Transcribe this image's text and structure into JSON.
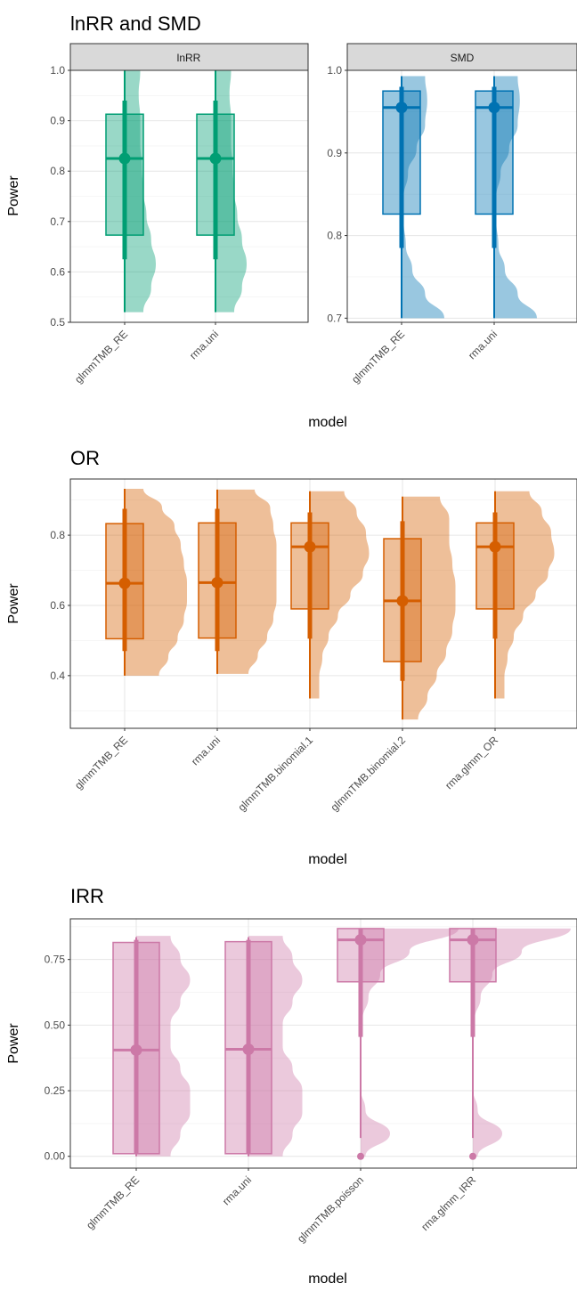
{
  "chart_data": [
    {
      "type": "raincloud",
      "title": "lnRR and SMD",
      "xlabel": "model",
      "ylabel": "Power",
      "color": "#009E73",
      "facets": [
        {
          "strip": "lnRR",
          "color": "#009E73",
          "ylim": [
            0.5,
            1.0
          ],
          "yticks": [
            "0.5",
            "0.6",
            "0.7",
            "0.8",
            "0.9",
            "1.0"
          ],
          "categories": [
            "glmmTMB_RE",
            "rma.uni"
          ],
          "series": [
            {
              "q1": 0.673,
              "median": 0.825,
              "q3": 0.913,
              "whisker_low": 0.52,
              "whisker_high": 1.0,
              "interval_low": 0.625,
              "interval_high": 0.94,
              "point": 0.825,
              "density_max": 1.0,
              "density_min": 0.52,
              "density_shape": [
                0.6,
                0.85,
                1.0,
                0.85,
                0.7,
                0.6,
                0.55,
                0.5,
                0.5,
                0.45,
                0.5
              ]
            },
            {
              "q1": 0.673,
              "median": 0.825,
              "q3": 0.913,
              "whisker_low": 0.52,
              "whisker_high": 1.0,
              "interval_low": 0.625,
              "interval_high": 0.94,
              "point": 0.825,
              "density_max": 1.0,
              "density_min": 0.52,
              "density_shape": [
                0.6,
                0.85,
                1.0,
                0.85,
                0.7,
                0.6,
                0.55,
                0.5,
                0.5,
                0.45,
                0.5
              ]
            }
          ]
        },
        {
          "strip": "SMD",
          "color": "#0072B2",
          "ylim": [
            0.695,
            1.0
          ],
          "yticks": [
            "0.7",
            "0.8",
            "0.9",
            "1.0"
          ],
          "categories": [
            "glmmTMB_RE",
            "rma.uni"
          ],
          "series": [
            {
              "q1": 0.826,
              "median": 0.955,
              "q3": 0.975,
              "whisker_low": 0.7,
              "whisker_high": 0.993,
              "interval_low": 0.785,
              "interval_high": 0.98,
              "point": 0.955,
              "density_max": 0.993,
              "density_min": 0.7,
              "density_shape": [
                1.0,
                0.55,
                0.25,
                0.1,
                0.05,
                0.05,
                0.15,
                0.35,
                0.55,
                0.6,
                0.55
              ]
            },
            {
              "q1": 0.826,
              "median": 0.955,
              "q3": 0.975,
              "whisker_low": 0.7,
              "whisker_high": 0.993,
              "interval_low": 0.785,
              "interval_high": 0.98,
              "point": 0.955,
              "density_max": 0.993,
              "density_min": 0.7,
              "density_shape": [
                1.0,
                0.55,
                0.25,
                0.1,
                0.05,
                0.05,
                0.15,
                0.35,
                0.55,
                0.6,
                0.55
              ]
            }
          ]
        }
      ]
    },
    {
      "type": "raincloud",
      "title": "OR",
      "xlabel": "model",
      "ylabel": "Power",
      "color": "#D55E00",
      "ylim": [
        0.25,
        0.96
      ],
      "yticks": [
        "0.4",
        "0.6",
        "0.8"
      ],
      "categories": [
        "glmmTMB_RE",
        "rma.uni",
        "glmmTMB.binomial.1",
        "glmmTMB.binomial.2",
        "rma.glmm_OR"
      ],
      "series": [
        {
          "q1": 0.505,
          "median": 0.663,
          "q3": 0.833,
          "whisker_low": 0.4,
          "whisker_high": 0.932,
          "interval_low": 0.47,
          "interval_high": 0.875,
          "point": 0.663,
          "density_max": 0.932,
          "density_min": 0.4,
          "density_shape": [
            0.55,
            0.7,
            0.85,
            0.95,
            1.0,
            1.0,
            0.95,
            0.9,
            0.8,
            0.6,
            0.3
          ]
        },
        {
          "q1": 0.507,
          "median": 0.665,
          "q3": 0.835,
          "whisker_low": 0.405,
          "whisker_high": 0.93,
          "interval_low": 0.47,
          "interval_high": 0.875,
          "point": 0.665,
          "density_max": 0.93,
          "density_min": 0.405,
          "density_shape": [
            0.5,
            0.65,
            0.8,
            0.9,
            0.95,
            0.95,
            0.95,
            0.95,
            0.9,
            0.85,
            0.6
          ]
        },
        {
          "q1": 0.59,
          "median": 0.767,
          "q3": 0.835,
          "whisker_low": 0.335,
          "whisker_high": 0.925,
          "interval_low": 0.505,
          "interval_high": 0.865,
          "point": 0.767,
          "density_max": 0.925,
          "density_min": 0.335,
          "density_shape": [
            0.15,
            0.15,
            0.2,
            0.3,
            0.45,
            0.65,
            0.85,
            0.95,
            0.9,
            0.75,
            0.55
          ]
        },
        {
          "q1": 0.44,
          "median": 0.613,
          "q3": 0.79,
          "whisker_low": 0.275,
          "whisker_high": 0.91,
          "interval_low": 0.385,
          "interval_high": 0.84,
          "point": 0.613,
          "density_max": 0.91,
          "density_min": 0.275,
          "density_shape": [
            0.25,
            0.4,
            0.55,
            0.7,
            0.8,
            0.85,
            0.85,
            0.8,
            0.75,
            0.75,
            0.6
          ]
        },
        {
          "q1": 0.59,
          "median": 0.767,
          "q3": 0.835,
          "whisker_low": 0.335,
          "whisker_high": 0.925,
          "interval_low": 0.505,
          "interval_high": 0.865,
          "point": 0.767,
          "density_max": 0.925,
          "density_min": 0.335,
          "density_shape": [
            0.15,
            0.15,
            0.2,
            0.3,
            0.45,
            0.65,
            0.85,
            0.95,
            0.9,
            0.75,
            0.55
          ]
        }
      ]
    },
    {
      "type": "raincloud",
      "title": "IRR",
      "xlabel": "model",
      "ylabel": "Power",
      "color": "#CC79A7",
      "ylim": [
        -0.045,
        0.905
      ],
      "yticks": [
        "0.00",
        "0.25",
        "0.50",
        "0.75"
      ],
      "categories": [
        "glmmTMB_RE",
        "rma.uni",
        "glmmTMB.poisson",
        "rma.glmm_IRR"
      ],
      "series": [
        {
          "q1": 0.01,
          "median": 0.405,
          "q3": 0.815,
          "whisker_low": 0.0,
          "whisker_high": 0.835,
          "interval_low": 0.01,
          "interval_high": 0.825,
          "point": 0.405,
          "outliers": [],
          "density_max": 0.84,
          "density_min": 0.0,
          "density_shape": [
            0.35,
            0.45,
            0.55,
            0.55,
            0.45,
            0.35,
            0.35,
            0.45,
            0.55,
            0.45,
            0.35
          ]
        },
        {
          "q1": 0.01,
          "median": 0.408,
          "q3": 0.818,
          "whisker_low": 0.0,
          "whisker_high": 0.835,
          "interval_low": 0.01,
          "interval_high": 0.825,
          "point": 0.408,
          "outliers": [],
          "density_max": 0.84,
          "density_min": 0.0,
          "density_shape": [
            0.35,
            0.45,
            0.55,
            0.55,
            0.45,
            0.35,
            0.35,
            0.45,
            0.55,
            0.45,
            0.35
          ]
        },
        {
          "q1": 0.665,
          "median": 0.825,
          "q3": 0.868,
          "whisker_low": 0.07,
          "whisker_high": 0.868,
          "interval_low": 0.455,
          "interval_high": 0.868,
          "point": 0.825,
          "outliers": [
            0.0
          ],
          "density_max": 0.868,
          "density_min": 0.0,
          "density_shape": [
            0.05,
            0.3,
            0.05,
            0.0,
            0.0,
            0.0,
            0.02,
            0.08,
            0.2,
            0.5,
            1.0
          ]
        },
        {
          "q1": 0.665,
          "median": 0.825,
          "q3": 0.868,
          "whisker_low": 0.07,
          "whisker_high": 0.868,
          "interval_low": 0.455,
          "interval_high": 0.868,
          "point": 0.825,
          "outliers": [
            0.0
          ],
          "density_max": 0.868,
          "density_min": 0.0,
          "density_shape": [
            0.05,
            0.3,
            0.05,
            0.0,
            0.0,
            0.0,
            0.02,
            0.08,
            0.2,
            0.5,
            1.0
          ]
        }
      ]
    }
  ]
}
